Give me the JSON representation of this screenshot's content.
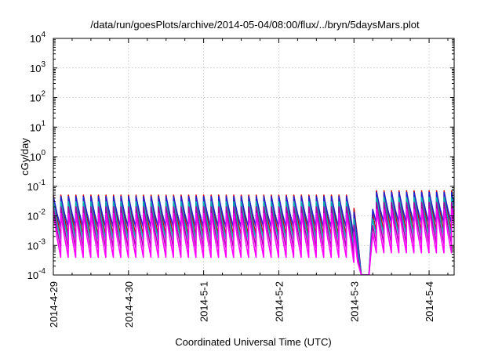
{
  "chart_data": {
    "type": "line",
    "title": "/data/run/goesPlots/archive/2014-05-04/08:00/flux/../bryn/5daysMars.plot",
    "xlabel": "Coordinated Universal Time (UTC)",
    "ylabel": "cGy/day",
    "yscale": "log",
    "ylim": [
      0.0001,
      10000
    ],
    "yticks": [
      {
        "base": "10",
        "exp": "-4"
      },
      {
        "base": "10",
        "exp": "-3"
      },
      {
        "base": "10",
        "exp": "-2"
      },
      {
        "base": "10",
        "exp": "-1"
      },
      {
        "base": "10",
        "exp": "0"
      },
      {
        "base": "10",
        "exp": "1"
      },
      {
        "base": "10",
        "exp": "2"
      },
      {
        "base": "10",
        "exp": "3"
      },
      {
        "base": "10",
        "exp": "4"
      }
    ],
    "xlim": [
      "2014-04-29T00:00",
      "2014-05-04T08:00"
    ],
    "xticks": [
      "2014-4-29",
      "2014-4-30",
      "2014-5-1",
      "2014-5-2",
      "2014-5-3",
      "2014-5-4"
    ],
    "grid": true,
    "legend": "none",
    "series_style": "sawtooth, about 10 cycles per day",
    "series": [
      {
        "color": "#cc0000",
        "peak": 0.05,
        "trough": 0.002
      },
      {
        "color": "#2222cc",
        "peak": 0.045,
        "trough": 0.004
      },
      {
        "color": "#00b3b3",
        "peak": 0.03,
        "trough": 0.0015
      },
      {
        "color": "#aa00aa",
        "peak": 0.02,
        "trough": 0.0008
      },
      {
        "color": "#ff00ff",
        "peak": 0.012,
        "trough": 0.0004
      }
    ],
    "events": [
      {
        "description": "dropout after 2014-5-3",
        "start": "2014-05-02T23:00",
        "min_start": "2014-05-03T02:00",
        "end": "2014-05-03T05:00",
        "min_value": 0.0001
      },
      {
        "description": "elevated after recovery",
        "start": "2014-05-03T06:00",
        "peak": 0.07
      }
    ]
  }
}
